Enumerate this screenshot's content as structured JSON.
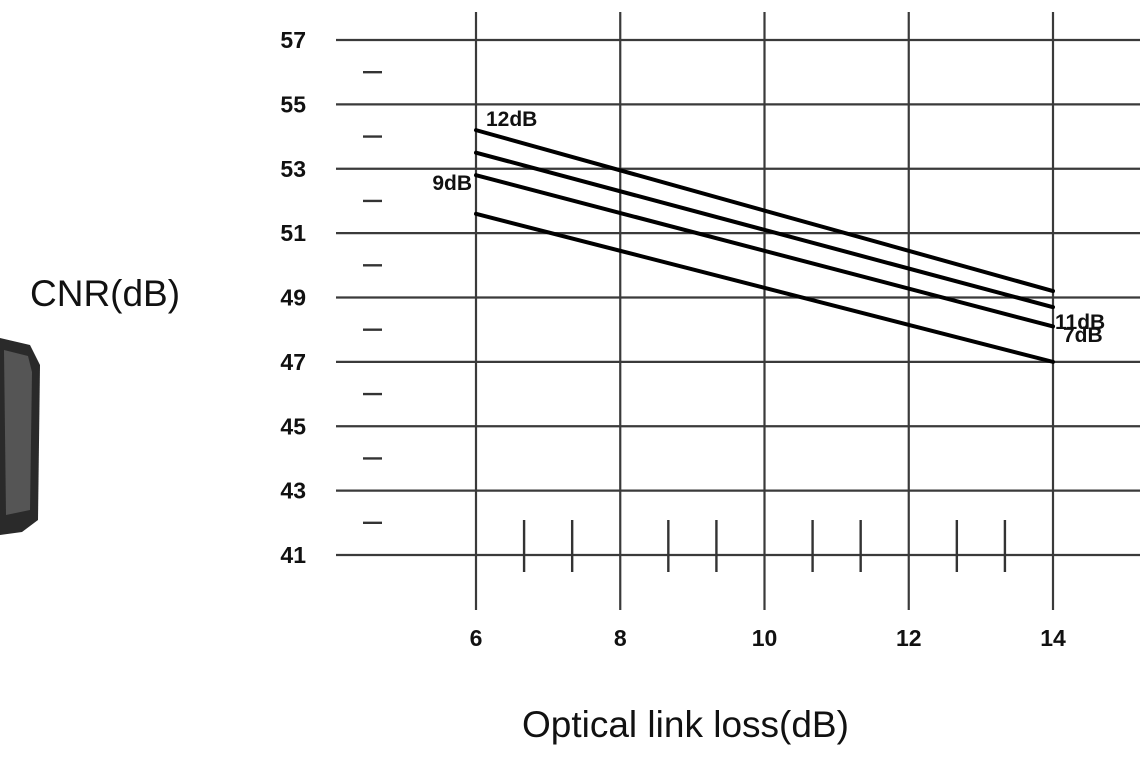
{
  "chart_data": {
    "type": "line",
    "title": "",
    "xlabel": "Optical link loss(dB)",
    "ylabel": "CNR(dB)",
    "xlim": [
      6,
      14
    ],
    "ylim": [
      41,
      57
    ],
    "x_ticks": [
      6,
      8,
      10,
      12,
      14
    ],
    "y_ticks": [
      41,
      43,
      45,
      47,
      49,
      51,
      53,
      55,
      57
    ],
    "grid": true,
    "series": [
      {
        "name": "12dB",
        "x": [
          6,
          14
        ],
        "y": [
          54.2,
          49.2
        ]
      },
      {
        "name": "11dB",
        "x": [
          6,
          14
        ],
        "y": [
          53.5,
          48.7
        ]
      },
      {
        "name": "9dB",
        "x": [
          6,
          14
        ],
        "y": [
          52.8,
          48.1
        ]
      },
      {
        "name": "7dB",
        "x": [
          6,
          14
        ],
        "y": [
          51.6,
          47.0
        ]
      }
    ],
    "series_label_side": {
      "12dB": "start",
      "9dB": "start",
      "11dB": "end",
      "7dB": "end"
    }
  }
}
